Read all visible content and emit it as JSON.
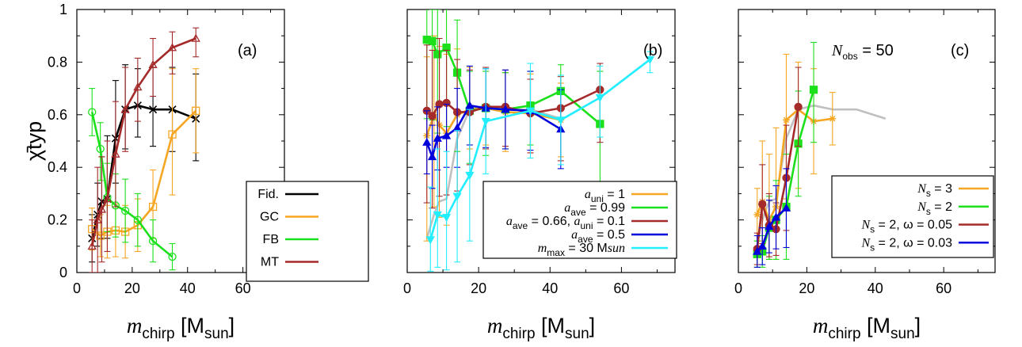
{
  "figure": {
    "ylabel": "χ̄typ",
    "xlabel_main": "m",
    "xlabel_sub": "chirp",
    "xlabel_unit": "[M",
    "xlabel_unit_sub": "sun",
    "xlabel_unit_close": "]",
    "x_ticks": [
      "0",
      "20",
      "40",
      "60"
    ],
    "y_ticks": [
      "0",
      "0.2",
      "0.4",
      "0.6",
      "0.8",
      "1"
    ],
    "xlim": [
      0,
      75
    ],
    "ylim": [
      0,
      1
    ],
    "colors": {
      "black": "#000000",
      "orange": "#f5a623",
      "green": "#1be01b",
      "darkred": "#a52a2a",
      "blue": "#0000dd",
      "cyan": "#22eeff",
      "gray": "#c0c0c0"
    }
  },
  "chart_data": [
    {
      "type": "line",
      "panel_label": "(a)",
      "legend_placement": "bottom-right",
      "series": [
        {
          "name": "Fid.",
          "color": "#000000",
          "marker": "x",
          "x": [
            5.5,
            7.5,
            9,
            11,
            14,
            17.5,
            22,
            27.5,
            34.5,
            43
          ],
          "y": [
            0.13,
            0.22,
            0.27,
            0.28,
            0.51,
            0.62,
            0.635,
            0.62,
            0.62,
            0.585
          ],
          "err_low": [
            0.09,
            0.12,
            0.14,
            0.15,
            0.17,
            0.15,
            0.12,
            0.14,
            0.16,
            0.16
          ],
          "err_high": [
            0.09,
            0.12,
            0.17,
            0.24,
            0.22,
            0.17,
            0.14,
            0.16,
            0.16,
            0.17
          ]
        },
        {
          "name": "GC",
          "color": "#f5a623",
          "marker": "square",
          "x": [
            5.5,
            8.5,
            11,
            14,
            17.5,
            22,
            27.5,
            34.5,
            43
          ],
          "y": [
            0.165,
            0.14,
            0.155,
            0.16,
            0.155,
            0.18,
            0.25,
            0.525,
            0.615
          ],
          "err_low": [
            0.08,
            0.08,
            0.1,
            0.1,
            0.1,
            0.1,
            0.12,
            0.23,
            0.16
          ],
          "err_high": [
            0.08,
            0.08,
            0.1,
            0.1,
            0.1,
            0.1,
            0.14,
            0.25,
            0.16
          ]
        },
        {
          "name": "FB",
          "color": "#1be01b",
          "marker": "circle",
          "x": [
            5.5,
            8.5,
            11,
            14,
            17.5,
            22,
            27.5,
            34.5
          ],
          "y": [
            0.61,
            0.47,
            0.285,
            0.255,
            0.235,
            0.2,
            0.12,
            0.06
          ],
          "err_low": [
            0.09,
            0.12,
            0.13,
            0.12,
            0.12,
            0.1,
            0.08,
            0.05
          ],
          "err_high": [
            0.09,
            0.1,
            0.13,
            0.12,
            0.12,
            0.1,
            0.08,
            0.05
          ]
        },
        {
          "name": "MT",
          "color": "#a52a2a",
          "marker": "triangle",
          "x": [
            5.5,
            7.5,
            9,
            11,
            14,
            17.5,
            22,
            27.5,
            34.5,
            43
          ],
          "y": [
            0.1,
            0.2,
            0.24,
            0.28,
            0.45,
            0.62,
            0.705,
            0.79,
            0.855,
            0.89
          ],
          "err_low": [
            0.1,
            0.2,
            0.2,
            0.2,
            0.2,
            0.16,
            0.13,
            0.12,
            0.1,
            0.07
          ],
          "err_high": [
            0.1,
            0.2,
            0.2,
            0.22,
            0.2,
            0.16,
            0.11,
            0.1,
            0.06,
            0.04
          ]
        }
      ]
    },
    {
      "type": "line",
      "panel_label": "(b)",
      "legend_placement": "bottom-right",
      "series": [
        {
          "name": "Fid.",
          "legend": false,
          "color": "#c0c0c0",
          "marker": "none",
          "x": [
            5.5,
            7.5,
            9,
            11,
            14,
            17.5,
            22,
            27.5,
            34.5,
            43
          ],
          "y": [
            0.13,
            0.22,
            0.27,
            0.28,
            0.51,
            0.62,
            0.635,
            0.62,
            0.62,
            0.585
          ]
        },
        {
          "name_parts": [
            "a",
            "uni",
            " = 1"
          ],
          "color": "#f5a623",
          "marker": "star",
          "x": [
            5.5,
            7.5,
            9,
            11,
            14,
            17.5,
            22,
            27.5,
            34.5,
            43
          ],
          "y": [
            0.52,
            0.6,
            0.56,
            0.53,
            0.6,
            0.62,
            0.625,
            0.61,
            0.605,
            0.58
          ],
          "err_low": [
            0.4,
            0.35,
            0.35,
            0.35,
            0.3,
            0.15,
            0.14,
            0.15,
            0.15,
            0.14
          ],
          "err_high": [
            0.3,
            0.3,
            0.3,
            0.3,
            0.25,
            0.16,
            0.14,
            0.15,
            0.15,
            0.14
          ]
        },
        {
          "name_parts": [
            "a",
            "ave",
            " = 0.99"
          ],
          "color": "#1be01b",
          "marker": "square",
          "x": [
            5.5,
            7,
            8.5,
            11,
            14,
            17.5,
            22,
            27.5,
            34.5,
            43,
            54
          ],
          "y": [
            0.885,
            0.88,
            0.83,
            0.855,
            0.76,
            0.615,
            0.625,
            0.62,
            0.635,
            0.69,
            0.565
          ],
          "err_low": [
            0.3,
            0.3,
            0.3,
            0.3,
            0.3,
            0.2,
            0.18,
            0.15,
            0.15,
            0.15,
            0.25
          ],
          "err_high": [
            0.15,
            0.12,
            0.17,
            0.15,
            0.2,
            0.15,
            0.14,
            0.14,
            0.13,
            0.1,
            0.2
          ]
        },
        {
          "name_parts": [
            "a",
            "ave",
            " = 0.66, ",
            "a",
            "uni",
            " = 0.1"
          ],
          "color": "#a52a2a",
          "marker": "circle",
          "x": [
            5.5,
            7,
            9,
            11,
            14,
            17.5,
            22,
            27.5,
            34.5,
            43,
            54
          ],
          "y": [
            0.615,
            0.595,
            0.64,
            0.645,
            0.61,
            0.61,
            0.63,
            0.63,
            0.605,
            0.625,
            0.695
          ],
          "err_low": [
            0.35,
            0.35,
            0.35,
            0.35,
            0.3,
            0.2,
            0.16,
            0.15,
            0.15,
            0.2,
            0.2
          ],
          "err_high": [
            0.25,
            0.25,
            0.25,
            0.2,
            0.2,
            0.16,
            0.15,
            0.14,
            0.13,
            0.12,
            0.1
          ]
        },
        {
          "name_parts": [
            "a",
            "ave",
            " = 0.5"
          ],
          "color": "#0000dd",
          "marker": "triangle",
          "x": [
            5.5,
            7,
            8.5,
            11,
            14,
            17.5,
            22,
            27.5,
            34.5,
            43
          ],
          "y": [
            0.495,
            0.44,
            0.51,
            0.52,
            0.55,
            0.635,
            0.625,
            0.62,
            0.615,
            0.545
          ],
          "err_low": [
            0.12,
            0.12,
            0.12,
            0.12,
            0.15,
            0.15,
            0.15,
            0.15,
            0.15,
            0.15
          ],
          "err_high": [
            0.12,
            0.12,
            0.12,
            0.12,
            0.15,
            0.15,
            0.15,
            0.15,
            0.15,
            0.15
          ]
        },
        {
          "name_parts": [
            "m",
            "max",
            " = 30 M",
            "sun",
            ""
          ],
          "color": "#22eeff",
          "marker": "triangle-down",
          "x": [
            6.5,
            8.5,
            11,
            14,
            17.5,
            22,
            34.5,
            43,
            54,
            68
          ],
          "y": [
            0.125,
            0.22,
            0.21,
            0.29,
            0.37,
            0.575,
            0.615,
            0.58,
            0.665,
            0.81
          ],
          "err_low": [
            0.12,
            0.2,
            0.2,
            0.25,
            0.25,
            0.2,
            0.18,
            0.17,
            0.15,
            0.05
          ],
          "err_high": [
            0.2,
            0.25,
            0.25,
            0.25,
            0.25,
            0.2,
            0.18,
            0.17,
            0.12,
            0.03
          ]
        }
      ]
    },
    {
      "type": "line",
      "panel_label": "(c)",
      "annotation_parts": [
        "N",
        "obs",
        " = 50"
      ],
      "legend_placement": "bottom-right",
      "series": [
        {
          "name": "Fid.",
          "legend": false,
          "color": "#c0c0c0",
          "marker": "none",
          "x": [
            5.5,
            7.5,
            9,
            11,
            14,
            17.5,
            22,
            27.5,
            34.5,
            43
          ],
          "y": [
            0.13,
            0.22,
            0.27,
            0.28,
            0.51,
            0.62,
            0.635,
            0.62,
            0.62,
            0.585
          ]
        },
        {
          "name_parts": [
            "N",
            "s",
            " = 3"
          ],
          "color": "#f5a623",
          "marker": "star",
          "x": [
            5.5,
            7,
            9,
            11,
            14,
            17.5,
            22,
            27.5
          ],
          "y": [
            0.22,
            0.27,
            0.2,
            0.25,
            0.58,
            0.62,
            0.575,
            0.585
          ],
          "err_low": [
            0.1,
            0.15,
            0.15,
            0.2,
            0.3,
            0.3,
            0.2,
            0.1
          ],
          "err_high": [
            0.1,
            0.23,
            0.25,
            0.3,
            0.25,
            0.18,
            0.2,
            0.1
          ]
        },
        {
          "name_parts": [
            "N",
            "s",
            " = 2"
          ],
          "color": "#1be01b",
          "marker": "square",
          "x": [
            5.5,
            7,
            9,
            11,
            14,
            17.5,
            22
          ],
          "y": [
            0.07,
            0.08,
            0.17,
            0.2,
            0.25,
            0.49,
            0.695
          ],
          "err_low": [
            0.05,
            0.06,
            0.12,
            0.15,
            0.2,
            0.2,
            0.2
          ],
          "err_high": [
            0.05,
            0.06,
            0.12,
            0.15,
            0.2,
            0.2,
            0.18
          ]
        },
        {
          "name_parts": [
            "N",
            "s",
            " = 2, ω = 0.05"
          ],
          "color": "#a52a2a",
          "marker": "circle",
          "x": [
            5.5,
            7,
            9,
            11,
            14,
            17.5
          ],
          "y": [
            0.09,
            0.26,
            0.18,
            0.165,
            0.36,
            0.63
          ],
          "err_low": [
            0.06,
            0.15,
            0.12,
            0.1,
            0.2,
            0.15
          ],
          "err_high": [
            0.06,
            0.15,
            0.12,
            0.1,
            0.2,
            0.15
          ]
        },
        {
          "name_parts": [
            "N",
            "s",
            " = 2, ω = 0.03"
          ],
          "color": "#0000dd",
          "marker": "triangle",
          "x": [
            5.5,
            7,
            9,
            11,
            14
          ],
          "y": [
            0.08,
            0.1,
            0.175,
            0.21,
            0.245
          ],
          "err_low": [
            0.06,
            0.07,
            0.1,
            0.12,
            0.15
          ],
          "err_high": [
            0.06,
            0.07,
            0.1,
            0.12,
            0.15
          ]
        }
      ]
    }
  ]
}
